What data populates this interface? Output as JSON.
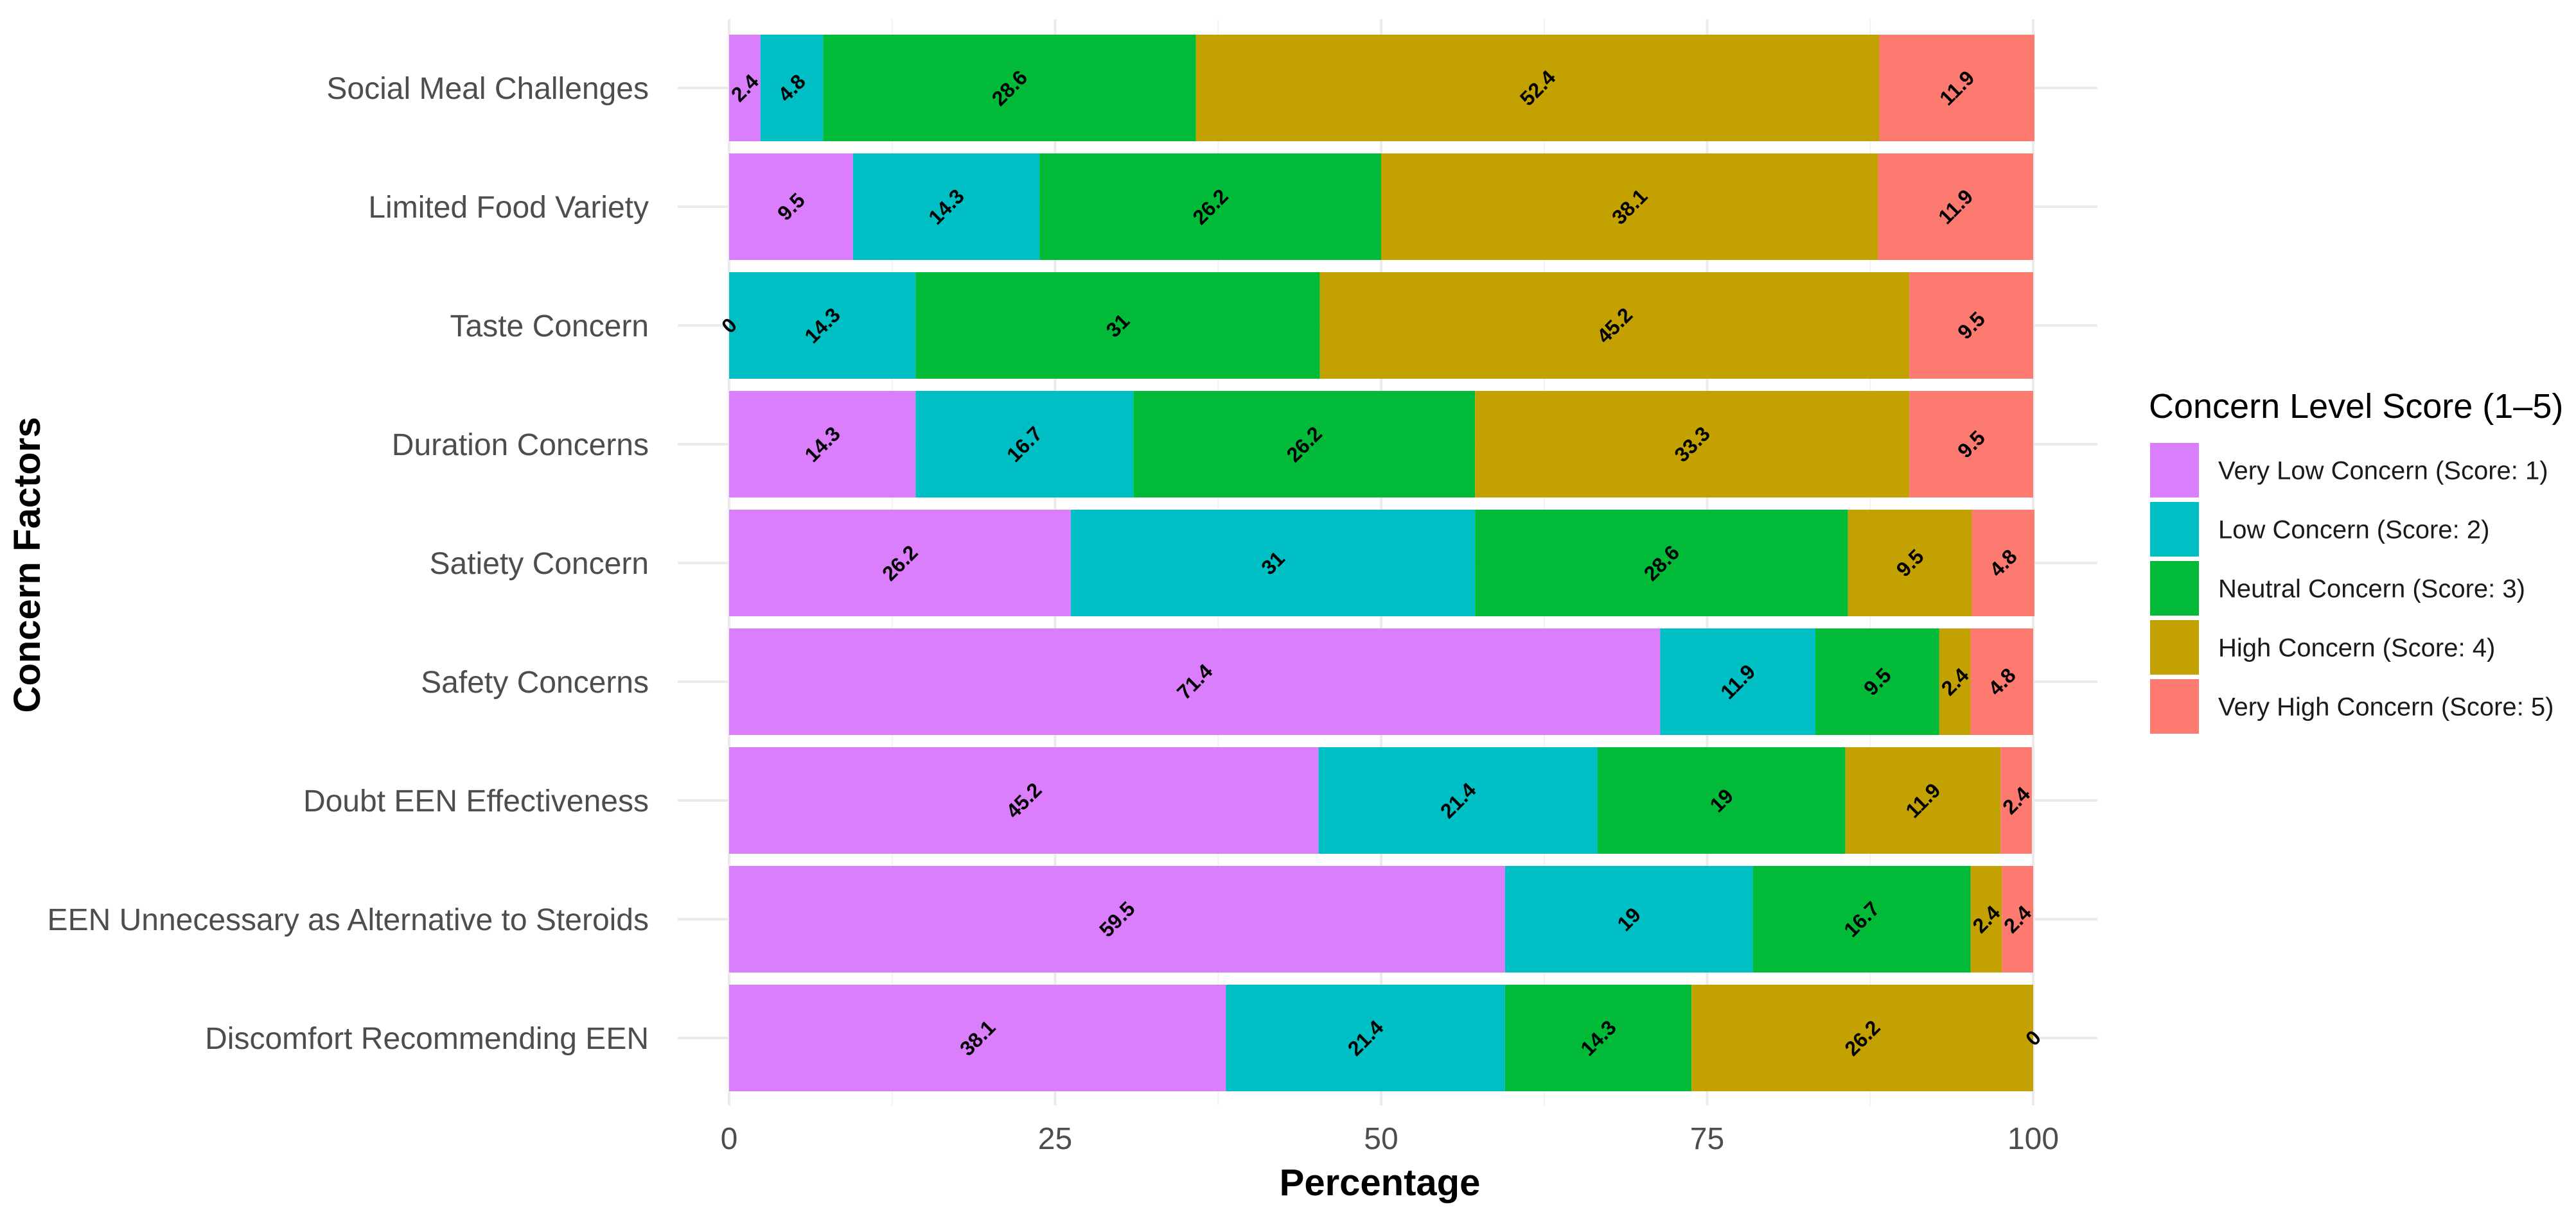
{
  "chart_data": {
    "type": "bar",
    "orientation": "horizontal",
    "stacked": true,
    "title": "",
    "xlabel": "Percentage",
    "ylabel": "Concern Factors",
    "xlim": [
      0,
      100
    ],
    "xticks": [
      0,
      25,
      50,
      75,
      100
    ],
    "grid": true,
    "legend_position": "right",
    "categories": [
      "Social Meal Challenges",
      "Limited Food Variety",
      "Taste Concern",
      "Duration Concerns",
      "Satiety Concern",
      "Safety Concerns",
      "Doubt EEN Effectiveness",
      "EEN Unnecessary as Alternative to Steroids",
      "Discomfort Recommending EEN"
    ],
    "legend_title": "Concern Level Score (1–5)",
    "series": [
      {
        "name": "Very Low Concern (Score: 1)",
        "color": "#DB7EFC",
        "values": [
          2.4,
          9.5,
          0,
          14.3,
          26.2,
          71.4,
          45.2,
          59.5,
          38.1
        ]
      },
      {
        "name": "Low Concern (Score: 2)",
        "color": "#00BFC4",
        "values": [
          4.8,
          14.3,
          14.3,
          16.7,
          31,
          11.9,
          21.4,
          19,
          21.4
        ]
      },
      {
        "name": "Neutral Concern (Score: 3)",
        "color": "#00BA38",
        "values": [
          28.6,
          26.2,
          31,
          26.2,
          28.6,
          9.5,
          19,
          16.7,
          14.3
        ]
      },
      {
        "name": "High Concern (Score: 4)",
        "color": "#C2A100",
        "values": [
          52.4,
          38.1,
          45.2,
          33.3,
          9.5,
          2.4,
          11.9,
          2.4,
          26.2
        ]
      },
      {
        "name": "Very High Concern (Score: 5)",
        "color": "#FC7A70",
        "values": [
          11.9,
          11.9,
          9.5,
          9.5,
          4.8,
          4.8,
          2.4,
          2.4,
          0
        ]
      }
    ]
  }
}
